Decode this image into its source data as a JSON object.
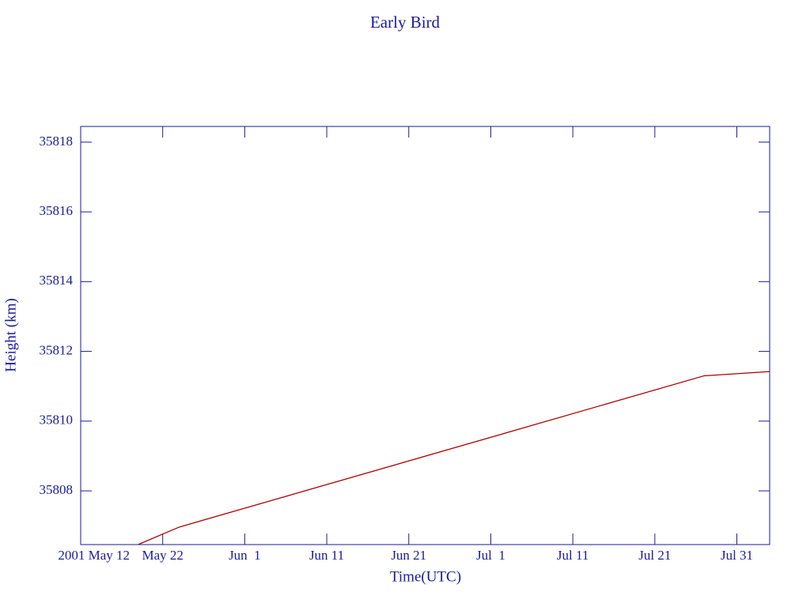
{
  "chart_data": {
    "type": "line",
    "title": "Early Bird",
    "xlabel": "Time(UTC)",
    "ylabel": "Height (km)",
    "x": [
      "2001-05-19",
      "2001-05-24",
      "2001-07-27",
      "2001-08-04"
    ],
    "series": [
      {
        "name": "Height",
        "color": "#b00000",
        "values": [
          35806.46,
          35806.96,
          35811.3,
          35811.42
        ]
      }
    ],
    "xlim": [
      "2001-05-12",
      "2001-08-04"
    ],
    "xticks": [
      {
        "value": "2001-05-12",
        "label": "2001 May 12"
      },
      {
        "value": "2001-05-22",
        "label": "May 22"
      },
      {
        "value": "2001-06-01",
        "label": "Jun  1"
      },
      {
        "value": "2001-06-11",
        "label": "Jun 11"
      },
      {
        "value": "2001-06-21",
        "label": "Jun 21"
      },
      {
        "value": "2001-07-01",
        "label": "Jul  1"
      },
      {
        "value": "2001-07-11",
        "label": "Jul 11"
      },
      {
        "value": "2001-07-21",
        "label": "Jul 21"
      },
      {
        "value": "2001-07-31",
        "label": "Jul 31"
      }
    ],
    "ylim": [
      35806.46,
      35818.45
    ],
    "yticks": [
      35808,
      35810,
      35812,
      35814,
      35816,
      35818
    ],
    "grid": false
  }
}
